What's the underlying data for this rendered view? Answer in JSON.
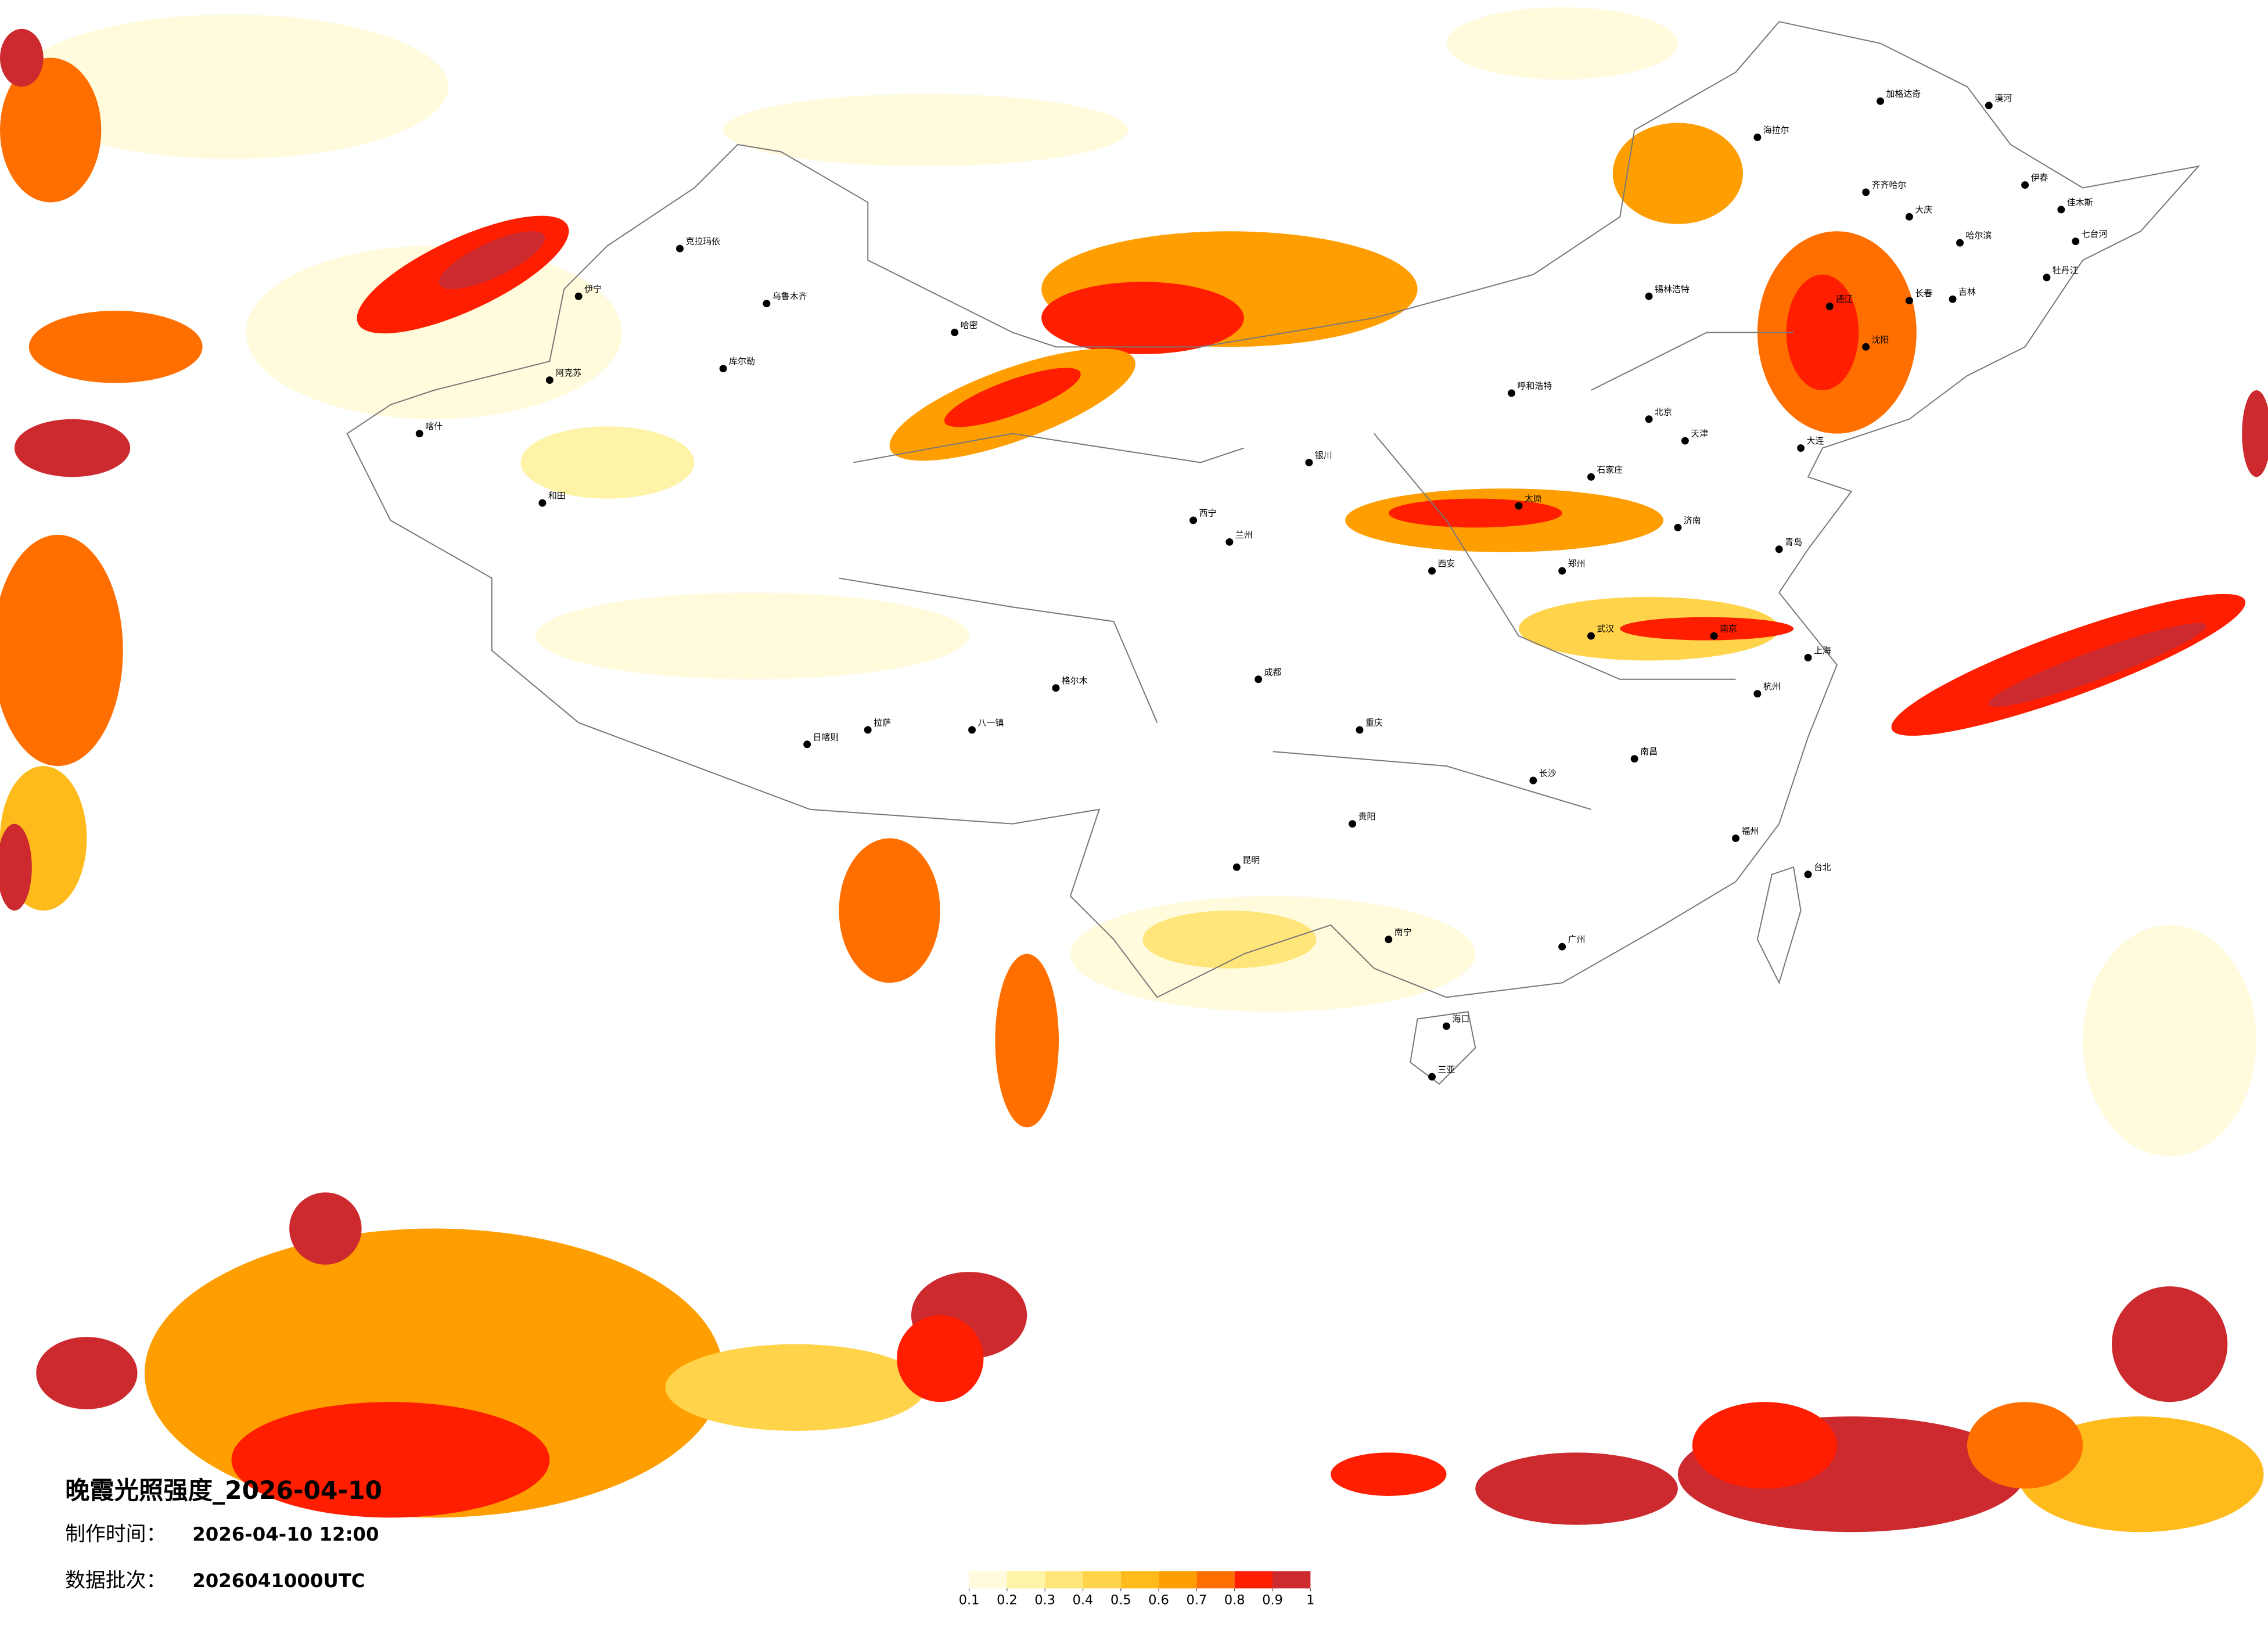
{
  "title": "晚霞光照强度_2026-04-10",
  "made_label": "制作时间：",
  "made_time": "2026-04-10 12:00",
  "batch_label": "数据批次：",
  "batch": "2026041000UTC",
  "legend": {
    "ticks": [
      0.1,
      0.2,
      0.3,
      0.4,
      0.5,
      0.6,
      0.7,
      0.8,
      0.9,
      1
    ],
    "colors": [
      "#fffbdc",
      "#fff3a8",
      "#ffe57a",
      "#ffd34a",
      "#ffbb1c",
      "#ff9e00",
      "#ff6f00",
      "#ff1e00",
      "#cc2a2e"
    ]
  },
  "cities": [
    "漠河",
    "加格达奇",
    "海拉尔",
    "齐齐哈尔",
    "大庆",
    "哈尔滨",
    "伊春",
    "佳木斯",
    "七台河",
    "牡丹江",
    "长春",
    "吉林",
    "通辽",
    "锡林浩特",
    "乌鲁木齐",
    "伊宁",
    "克拉玛依",
    "阿克苏",
    "喀什",
    "和田",
    "哈密",
    "库尔勒",
    "格尔木",
    "拉萨",
    "日喀则",
    "八一镇",
    "西宁",
    "兰州",
    "银川",
    "呼和浩特",
    "北京",
    "天津",
    "石家庄",
    "太原",
    "济南",
    "郑州",
    "西安",
    "成都",
    "重庆",
    "武汉",
    "南京",
    "上海",
    "杭州",
    "长沙",
    "南昌",
    "福州",
    "贵阳",
    "昆明",
    "南宁",
    "广州",
    "海口",
    "三亚",
    "台北",
    "大连",
    "沈阳",
    "青岛"
  ]
}
